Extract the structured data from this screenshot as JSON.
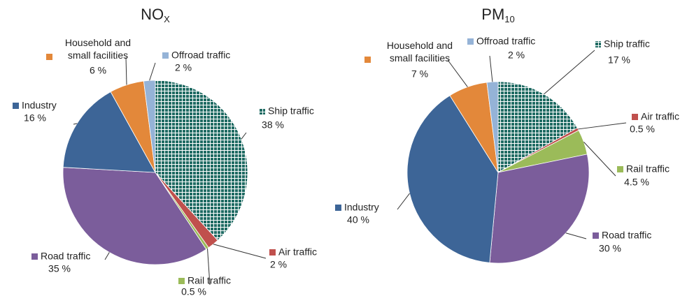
{
  "chart_data": [
    {
      "type": "pie",
      "title": "NO",
      "title_sub": "X",
      "categories": [
        "Ship traffic",
        "Air traffic",
        "Rail traffic",
        "Road traffic",
        "Industry",
        "Household and\nsmall facilities",
        "Offroad traffic"
      ],
      "values": [
        38,
        2,
        0.5,
        35,
        16,
        6,
        2
      ],
      "value_labels": [
        "38 %",
        "2 %",
        "0.5 %",
        "35 %",
        "16 %",
        "6 %",
        "2 %"
      ],
      "colors": [
        "#1f6b63",
        "#c0504d",
        "#9bbb59",
        "#7b5d9b",
        "#3d6597",
        "#e3883a",
        "#95b3d7"
      ],
      "patterned": [
        true,
        false,
        false,
        false,
        false,
        false,
        false
      ]
    },
    {
      "type": "pie",
      "title": "PM",
      "title_sub": "10",
      "categories": [
        "Ship traffic",
        "Air traffic",
        "Rail traffic",
        "Road traffic",
        "Industry",
        "Household and\nsmall facilities",
        "Offroad traffic"
      ],
      "values": [
        17,
        0.5,
        4.5,
        30,
        40,
        7,
        2
      ],
      "value_labels": [
        "17 %",
        "0.5 %",
        "4.5 %",
        "30 %",
        "40 %",
        "7 %",
        "2 %"
      ],
      "colors": [
        "#1f6b63",
        "#c0504d",
        "#9bbb59",
        "#7b5d9b",
        "#3d6597",
        "#e3883a",
        "#95b3d7"
      ],
      "patterned": [
        true,
        false,
        false,
        false,
        false,
        false,
        false
      ]
    }
  ]
}
